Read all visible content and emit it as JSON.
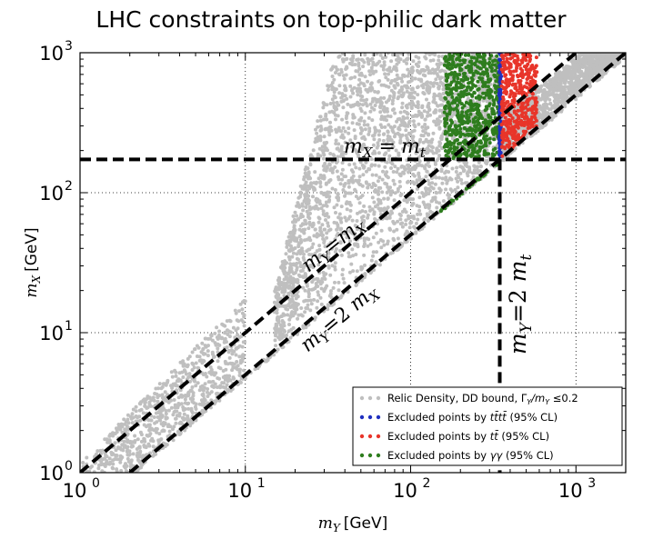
{
  "chart_data": {
    "type": "scatter",
    "title": "LHC constraints on top-philic dark matter",
    "xlabel_symbol": "m",
    "xlabel_sub": "Y",
    "xlabel_unit": "[GeV]",
    "ylabel_symbol": "m",
    "ylabel_sub": "X",
    "ylabel_unit": "[GeV]",
    "x_scale": "log",
    "y_scale": "log",
    "xlim": [
      1,
      2000
    ],
    "ylim": [
      1,
      1000
    ],
    "x_ticks": [
      "10",
      "10",
      "10",
      "10"
    ],
    "x_tick_exps": [
      "0",
      "1",
      "2",
      "3"
    ],
    "y_ticks": [
      "10",
      "10",
      "10",
      "10"
    ],
    "y_tick_exps": [
      "0",
      "1",
      "2",
      "3"
    ],
    "grid": true,
    "legend_position": "bottom-right",
    "series": [
      {
        "name": "Relic Density, DD bound, Γ_Y/m_Y ≤0.2",
        "color": "#bfbfbf",
        "region": "scan of allowed points, m_Y > m_X, extending from m_Y ≈ 1 to 2000 GeV"
      },
      {
        "name": "Excluded points by t t̄ t t̄ (95% CL)",
        "color": "#1f2fbf",
        "region": "thin band at m_Y ≈ 350 GeV, m_X > 175 GeV"
      },
      {
        "name": "Excluded points by t t̄ (95% CL)",
        "color": "#e8352a",
        "region": "m_Y ≈ 350–580 GeV, m_X ≈ 175–1000 GeV"
      },
      {
        "name": "Excluded points by γγ (95% CL)",
        "color": "#2e7d1e",
        "region": "m_Y ≈ 160–345 GeV, m_X ≈ 175–1000 GeV, plus points along m_Y = 2 m_X"
      }
    ],
    "lines": [
      {
        "label": "m_X = m_t",
        "type": "horizontal",
        "y": 173
      },
      {
        "label": "m_Y = m_X",
        "type": "diagonal",
        "slope": 1
      },
      {
        "label": "m_Y = 2 m_X",
        "type": "diagonal",
        "slope": 0.5
      },
      {
        "label": "m_Y = 2 m_t",
        "type": "vertical",
        "x": 346
      }
    ],
    "annotations": {
      "mx_mt": {
        "m": "m",
        "sub": "X",
        "eq": " =",
        "rhs": "m",
        "rhs_sub": "t"
      },
      "my_mx": {
        "m": "m",
        "sub": "Y",
        "eq": "=",
        "rhs": "m",
        "rhs_sub": "X"
      },
      "my_2mx": {
        "m": "m",
        "sub": "Y",
        "eq": "=2 ",
        "rhs": "m",
        "rhs_sub": "X"
      },
      "my_2mt": {
        "m": "m",
        "sub": "Y",
        "eq": "=2 ",
        "rhs": "m",
        "rhs_sub": "t"
      }
    },
    "legend": [
      {
        "text": "Relic Density, DD bound, Γ",
        "sub": "Y",
        "tail": "/m",
        "sub2": "Y",
        "tail2": " ≤0.2",
        "color": "#bfbfbf"
      },
      {
        "text": "Excluded points by ",
        "math": "tt̄tt̄",
        "tail": " (95% CL)",
        "color": "#1f2fbf"
      },
      {
        "text": "Excluded points by ",
        "math": "tt̄",
        "tail": " (95% CL)",
        "color": "#e8352a"
      },
      {
        "text": "Excluded points by ",
        "math": "γγ",
        "tail": " (95% CL)",
        "color": "#2e7d1e"
      }
    ]
  }
}
